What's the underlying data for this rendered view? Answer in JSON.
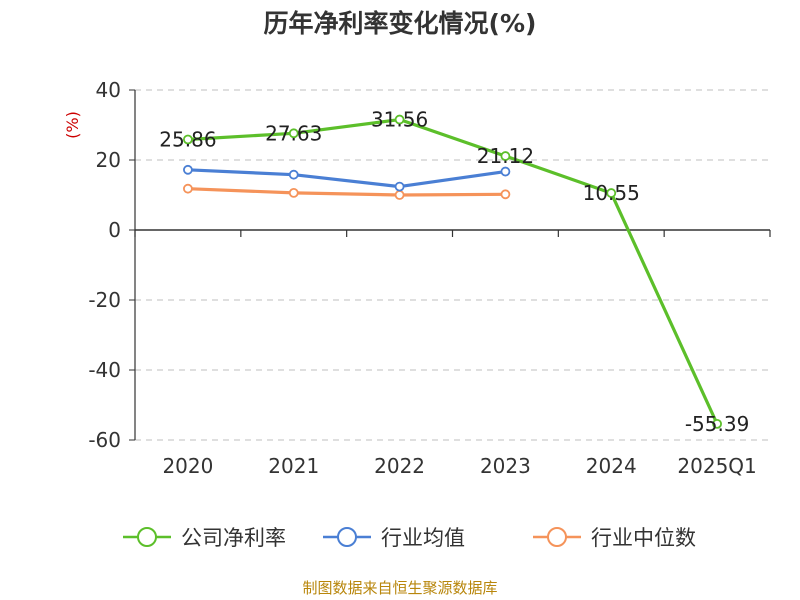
{
  "chart_data": {
    "type": "line",
    "title": "历年净利率变化情况(%)",
    "ylabel": "(%)",
    "xlabel": "",
    "categories": [
      "2020",
      "2021",
      "2022",
      "2023",
      "2024",
      "2025Q1"
    ],
    "ylim": [
      -60,
      40
    ],
    "yticks": [
      40,
      20,
      0,
      -20,
      -40,
      -60
    ],
    "grid": true,
    "legend_position": "bottom",
    "series": [
      {
        "name": "公司净利率",
        "color": "#5cbf2a",
        "values": [
          25.86,
          27.63,
          31.56,
          21.12,
          10.55,
          -55.39
        ],
        "labels": [
          "25.86",
          "27.63",
          "31.56",
          "21.12",
          "10.55",
          "-55.39"
        ]
      },
      {
        "name": "行业均值",
        "color": "#4a7fd4",
        "values": [
          17.2,
          15.8,
          12.4,
          16.7,
          null,
          null
        ]
      },
      {
        "name": "行业中位数",
        "color": "#f5935a",
        "values": [
          11.8,
          10.6,
          10.0,
          10.2,
          null,
          null
        ]
      }
    ]
  },
  "footer": {
    "source": "制图数据来自恒生聚源数据库"
  }
}
